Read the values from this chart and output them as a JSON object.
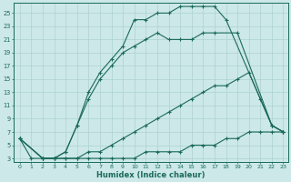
{
  "xlabel": "Humidex (Indice chaleur)",
  "bg_color": "#cce8e8",
  "line_color": "#1a6a5a",
  "markersize": 2.2,
  "linewidth": 0.8,
  "marker": "+",
  "xlim_min": -0.5,
  "xlim_max": 23.4,
  "ylim_min": 2.5,
  "ylim_max": 26.5,
  "xticks": [
    0,
    1,
    2,
    3,
    4,
    5,
    6,
    7,
    8,
    9,
    10,
    11,
    12,
    13,
    14,
    15,
    16,
    17,
    18,
    19,
    20,
    21,
    22,
    23
  ],
  "yticks": [
    3,
    5,
    7,
    9,
    11,
    13,
    15,
    17,
    19,
    21,
    23,
    25
  ],
  "curves": [
    {
      "x": [
        0,
        2,
        3,
        4,
        5,
        6,
        7,
        8,
        9,
        10,
        11,
        12,
        13,
        14,
        15,
        16,
        17,
        18,
        22,
        23
      ],
      "y": [
        6,
        3,
        3,
        4,
        8,
        13,
        16,
        18,
        20,
        24,
        24,
        25,
        25,
        26,
        26,
        26,
        26,
        24,
        8,
        7
      ]
    },
    {
      "x": [
        0,
        2,
        3,
        4,
        5,
        6,
        7,
        8,
        9,
        10,
        11,
        12,
        13,
        14,
        15,
        16,
        17,
        19,
        22,
        23
      ],
      "y": [
        6,
        3,
        3,
        4,
        8,
        12,
        15,
        17,
        19,
        20,
        21,
        22,
        21,
        21,
        21,
        22,
        22,
        22,
        8,
        7
      ]
    },
    {
      "x": [
        0,
        2,
        3,
        4,
        5,
        6,
        7,
        8,
        9,
        10,
        11,
        12,
        13,
        14,
        15,
        16,
        17,
        18,
        19,
        20,
        21,
        22,
        23
      ],
      "y": [
        6,
        3,
        3,
        3,
        3,
        4,
        4,
        5,
        6,
        7,
        8,
        9,
        10,
        11,
        12,
        13,
        14,
        14,
        15,
        16,
        12,
        8,
        7
      ]
    },
    {
      "x": [
        0,
        1,
        2,
        3,
        4,
        5,
        6,
        7,
        8,
        9,
        10,
        11,
        12,
        13,
        14,
        15,
        16,
        17,
        18,
        19,
        20,
        21,
        22,
        23
      ],
      "y": [
        6,
        3,
        3,
        3,
        3,
        3,
        3,
        3,
        3,
        3,
        3,
        4,
        4,
        4,
        4,
        5,
        5,
        5,
        6,
        6,
        7,
        7,
        7,
        7
      ]
    }
  ]
}
